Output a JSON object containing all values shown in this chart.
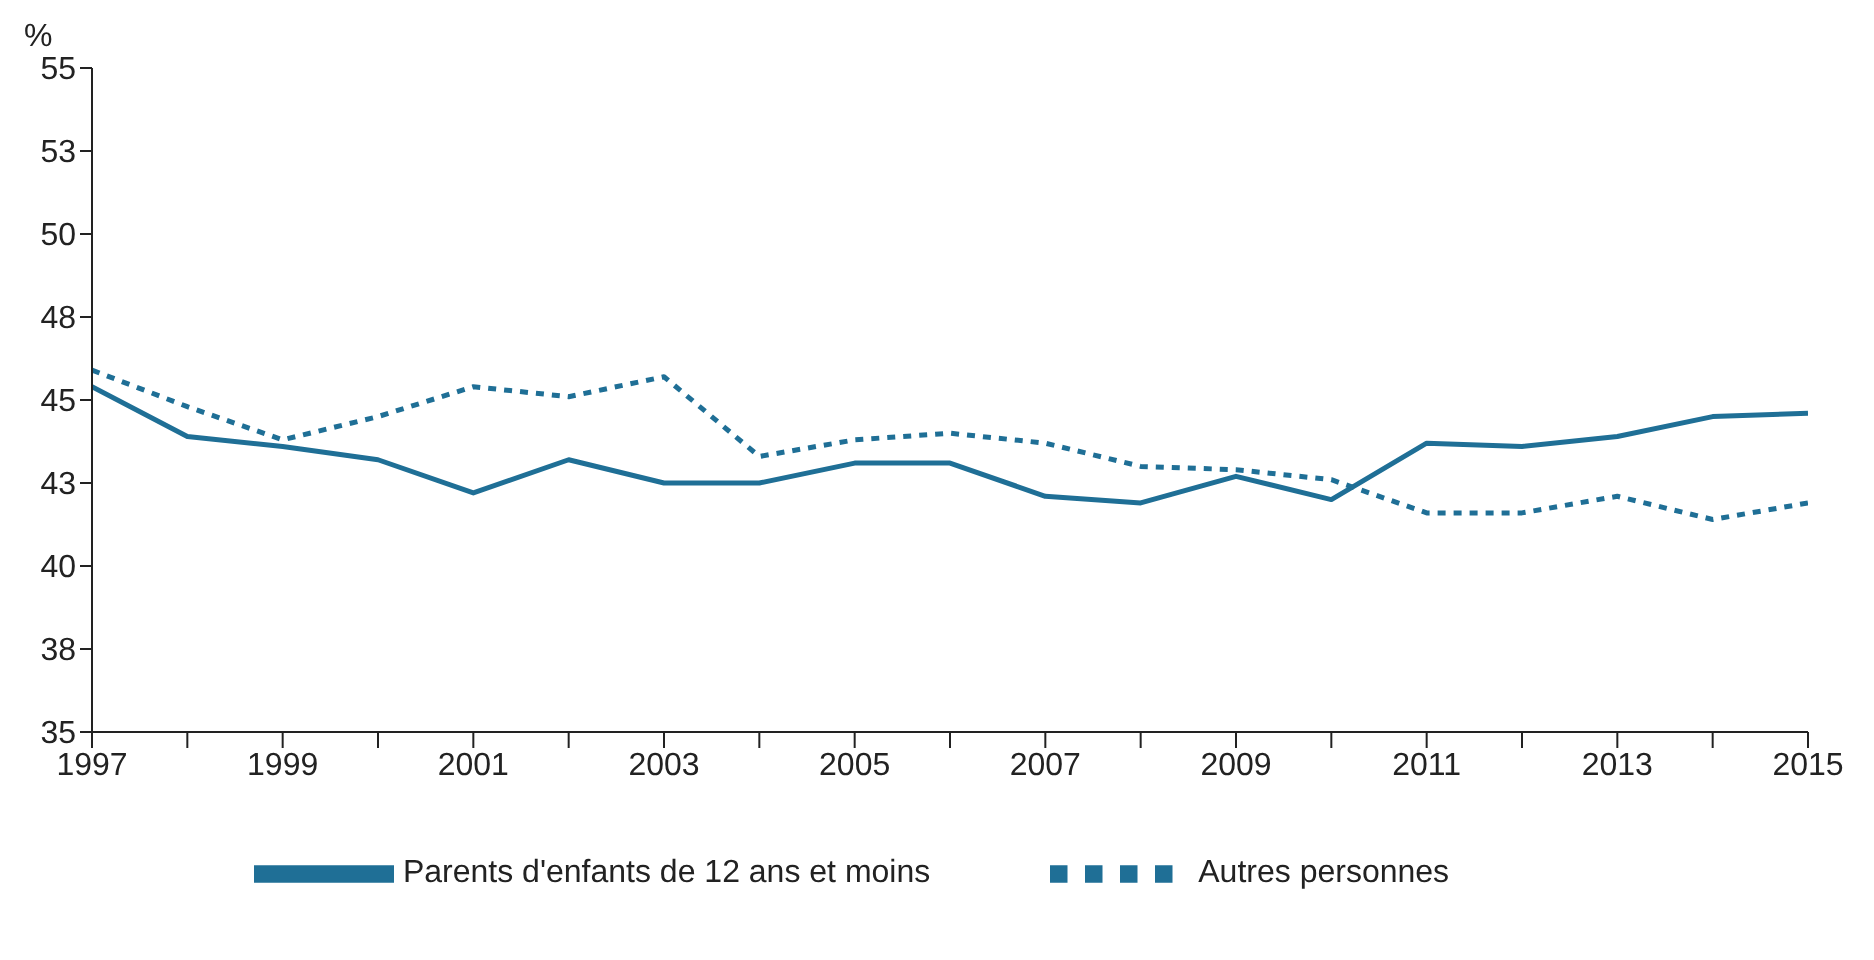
{
  "chart_data": {
    "type": "line",
    "ylabel": "%",
    "x": [
      1997,
      1998,
      1999,
      2000,
      2001,
      2002,
      2003,
      2004,
      2005,
      2006,
      2007,
      2008,
      2009,
      2010,
      2011,
      2012,
      2013,
      2014,
      2015
    ],
    "series": [
      {
        "name": "Parents d'enfants de 12 ans et moins",
        "color": "#1f6f96",
        "line_style": "solid",
        "values": [
          45.4,
          43.9,
          43.6,
          43.2,
          42.2,
          43.2,
          42.5,
          42.5,
          43.1,
          43.1,
          42.1,
          41.9,
          42.7,
          42.0,
          43.7,
          43.6,
          43.9,
          44.5,
          44.6
        ]
      },
      {
        "name": "Autres personnes",
        "color": "#1f6f96",
        "line_style": "dotted",
        "values": [
          45.9,
          44.8,
          43.8,
          44.5,
          45.4,
          45.1,
          45.7,
          43.3,
          43.8,
          44.0,
          43.7,
          43.0,
          42.9,
          42.6,
          41.6,
          41.6,
          42.1,
          41.4,
          41.9
        ]
      }
    ],
    "xlim": [
      1997,
      2015
    ],
    "xticks": [
      1997,
      {
        "value": 1998,
        "label": null
      },
      1999,
      {
        "value": 2000,
        "label": null
      },
      2001,
      {
        "value": 2002,
        "label": null
      },
      2003,
      {
        "value": 2004,
        "label": null
      },
      2005,
      {
        "value": 2006,
        "label": null
      },
      2007,
      {
        "value": 2008,
        "label": null
      },
      2009,
      {
        "value": 2010,
        "label": null
      },
      2011,
      {
        "value": 2012,
        "label": null
      },
      2013,
      {
        "value": 2014,
        "label": null
      },
      2015
    ],
    "ylim": [
      35,
      55
    ],
    "yticks": [
      35,
      {
        "value": 37.5,
        "label": "38"
      },
      40,
      {
        "value": 42.5,
        "label": "43"
      },
      45,
      {
        "value": 47.5,
        "label": "48"
      },
      50,
      {
        "value": 52.5,
        "label": "53"
      },
      55
    ],
    "grid": false,
    "legend": "bottom",
    "marker": "none"
  }
}
